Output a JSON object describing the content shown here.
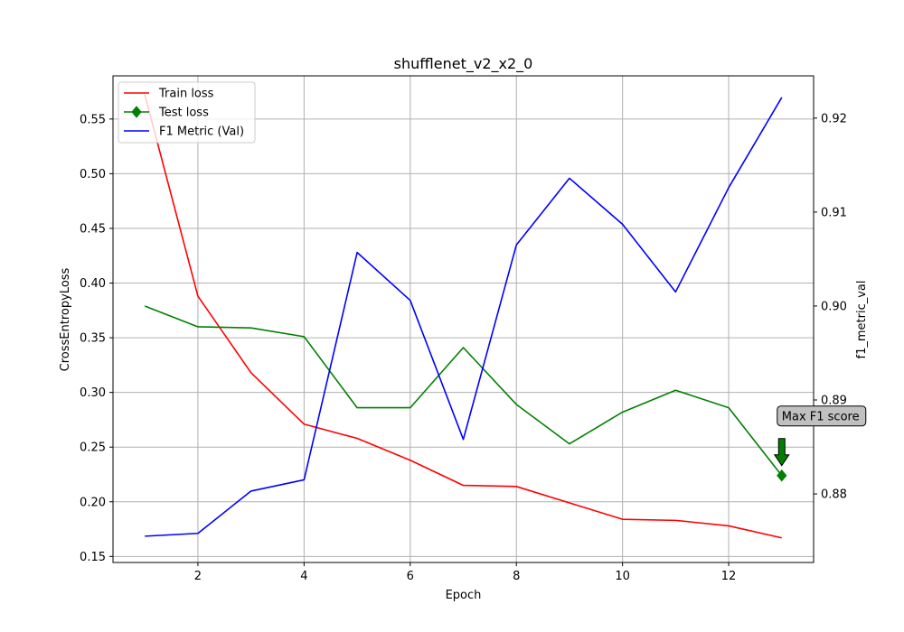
{
  "chart_data": {
    "type": "line",
    "title": "shufflenet_v2_x2_0",
    "xlabel": "Epoch",
    "ylabel_left": "CrossEntropyLoss",
    "ylabel_right": "f1_metric_val",
    "xlim": [
      0.4,
      13.6
    ],
    "ylim_left": [
      0.1445,
      0.5895
    ],
    "ylim_right": [
      0.8727,
      0.9245
    ],
    "x_ticks": [
      2,
      4,
      6,
      8,
      10,
      12
    ],
    "y_ticks_left": [
      0.15,
      0.2,
      0.25,
      0.3,
      0.35,
      0.4,
      0.45,
      0.5,
      0.55
    ],
    "y_ticks_right": [
      0.88,
      0.89,
      0.9,
      0.91,
      0.92
    ],
    "grid": true,
    "legend_position": "upper-left",
    "x": [
      1,
      2,
      3,
      4,
      5,
      6,
      7,
      8,
      9,
      10,
      11,
      12,
      13
    ],
    "series": [
      {
        "name": "Train loss",
        "axis": "left",
        "color": "#ff0000",
        "marker": "none",
        "values": [
          0.572,
          0.388,
          0.318,
          0.271,
          0.258,
          0.238,
          0.215,
          0.214,
          0.199,
          0.184,
          0.183,
          0.178,
          0.167
        ]
      },
      {
        "name": "Test loss",
        "axis": "left",
        "color": "#008000",
        "marker": "diamond-last",
        "values": [
          0.379,
          0.36,
          0.359,
          0.351,
          0.286,
          0.286,
          0.341,
          0.289,
          0.253,
          0.282,
          0.302,
          0.286,
          0.224
        ]
      },
      {
        "name": "F1 Metric (Val)",
        "axis": "right",
        "color": "#0000ff",
        "marker": "none",
        "values": [
          0.8755,
          0.8758,
          0.8803,
          0.8815,
          0.9057,
          0.9006,
          0.8858,
          0.9065,
          0.9136,
          0.9087,
          0.9015,
          0.9126,
          0.9222
        ]
      }
    ],
    "annotation": {
      "text": "Max F1 score",
      "x": 13,
      "y": 0.224,
      "axis": "left",
      "arrow_color": "#008000",
      "box_color": "#c0c0c0"
    }
  }
}
